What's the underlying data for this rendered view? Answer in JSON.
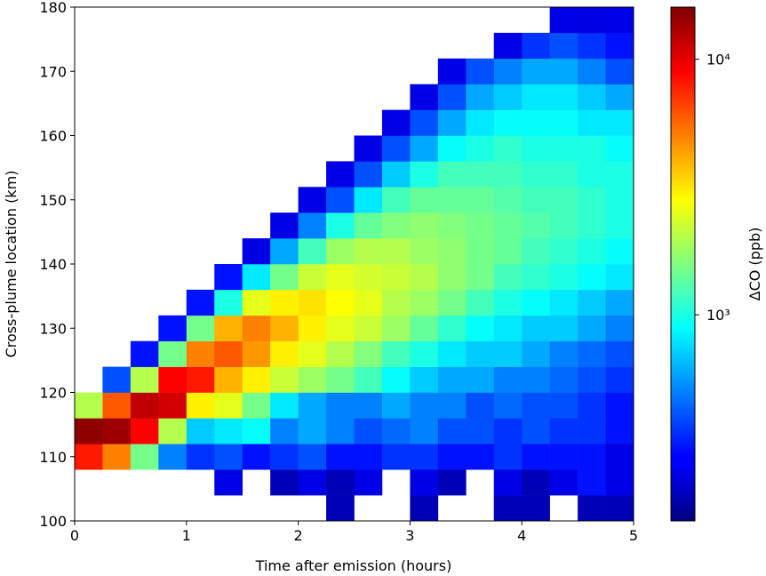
{
  "chart_data": {
    "type": "heatmap",
    "x_label": "Time after emission (hours)",
    "y_label": "Cross-plume location (km)",
    "colorbar_label": "ΔCO (ppb)",
    "colormap": "jet",
    "color_scale": "log",
    "xlim": [
      0,
      5
    ],
    "xticks": [
      0,
      1,
      2,
      3,
      4,
      5
    ],
    "ylim": [
      100,
      180
    ],
    "yticks": [
      100,
      110,
      120,
      130,
      140,
      150,
      160,
      170,
      180
    ],
    "clim": [
      156,
      16000
    ],
    "cticks": [
      {
        "value": 1000,
        "label": "10³"
      },
      {
        "value": 10000,
        "label": "10⁴"
      }
    ],
    "x_bins": [
      0,
      0.25,
      0.5,
      0.75,
      1,
      1.25,
      1.5,
      1.75,
      2,
      2.25,
      2.5,
      2.75,
      3,
      3.25,
      3.5,
      3.75,
      4,
      4.25,
      4.5,
      4.75,
      5
    ],
    "y_bins": [
      100,
      104,
      108,
      112,
      116,
      120,
      124,
      128,
      132,
      136,
      140,
      144,
      148,
      152,
      156,
      160,
      164,
      168,
      172,
      176,
      180
    ],
    "z": [
      [
        null,
        null,
        null,
        null,
        null,
        null,
        null,
        null,
        null,
        200,
        null,
        null,
        200,
        null,
        null,
        200,
        200,
        null,
        200,
        200
      ],
      [
        null,
        null,
        null,
        null,
        null,
        250,
        null,
        200,
        250,
        200,
        250,
        null,
        250,
        200,
        null,
        250,
        200,
        250,
        300,
        250
      ],
      [
        8000,
        5000,
        1500,
        500,
        350,
        400,
        300,
        350,
        400,
        300,
        300,
        350,
        350,
        300,
        300,
        350,
        300,
        300,
        300,
        250
      ],
      [
        15000,
        14000,
        9000,
        2000,
        700,
        800,
        900,
        500,
        600,
        500,
        400,
        450,
        500,
        400,
        400,
        350,
        400,
        350,
        350,
        300
      ],
      [
        2000,
        6000,
        12000,
        11000,
        3000,
        2500,
        1500,
        800,
        600,
        500,
        500,
        600,
        500,
        500,
        400,
        450,
        400,
        400,
        350,
        300
      ],
      [
        null,
        400,
        2000,
        9000,
        8000,
        4000,
        3000,
        2200,
        1800,
        1500,
        1200,
        900,
        700,
        600,
        600,
        500,
        500,
        450,
        400,
        350
      ],
      [
        null,
        null,
        300,
        1500,
        5000,
        6000,
        4500,
        3000,
        2500,
        2000,
        1600,
        1200,
        1000,
        800,
        700,
        700,
        600,
        500,
        450,
        400
      ],
      [
        null,
        null,
        null,
        300,
        1500,
        4000,
        5000,
        4000,
        3000,
        2500,
        2200,
        1800,
        1400,
        1100,
        900,
        800,
        700,
        700,
        600,
        500
      ],
      [
        null,
        null,
        null,
        null,
        300,
        1000,
        2500,
        3000,
        3200,
        2800,
        2500,
        2000,
        1800,
        1500,
        1200,
        1000,
        900,
        800,
        700,
        600
      ],
      [
        null,
        null,
        null,
        null,
        null,
        300,
        800,
        1500,
        2200,
        2500,
        2300,
        2200,
        2000,
        1700,
        1500,
        1200,
        1100,
        1000,
        900,
        800
      ],
      [
        null,
        null,
        null,
        null,
        null,
        null,
        250,
        600,
        1200,
        1800,
        2000,
        2000,
        1800,
        1700,
        1500,
        1400,
        1200,
        1100,
        1000,
        900
      ],
      [
        null,
        null,
        null,
        null,
        null,
        null,
        null,
        250,
        500,
        1000,
        1400,
        1600,
        1700,
        1600,
        1500,
        1400,
        1300,
        1200,
        1100,
        1000
      ],
      [
        null,
        null,
        null,
        null,
        null,
        null,
        null,
        null,
        250,
        400,
        800,
        1200,
        1400,
        1400,
        1400,
        1300,
        1200,
        1200,
        1100,
        1000
      ],
      [
        null,
        null,
        null,
        null,
        null,
        null,
        null,
        null,
        null,
        250,
        400,
        700,
        1000,
        1200,
        1200,
        1200,
        1100,
        1100,
        1000,
        1000
      ],
      [
        null,
        null,
        null,
        null,
        null,
        null,
        null,
        null,
        null,
        null,
        250,
        400,
        600,
        900,
        1000,
        1100,
        1000,
        1000,
        1000,
        900
      ],
      [
        null,
        null,
        null,
        null,
        null,
        null,
        null,
        null,
        null,
        null,
        null,
        250,
        400,
        600,
        800,
        900,
        900,
        900,
        800,
        800
      ],
      [
        null,
        null,
        null,
        null,
        null,
        null,
        null,
        null,
        null,
        null,
        null,
        null,
        250,
        400,
        600,
        700,
        800,
        800,
        700,
        600
      ],
      [
        null,
        null,
        null,
        null,
        null,
        null,
        null,
        null,
        null,
        null,
        null,
        null,
        null,
        250,
        400,
        500,
        600,
        600,
        500,
        400
      ],
      [
        null,
        null,
        null,
        null,
        null,
        null,
        null,
        null,
        null,
        null,
        null,
        null,
        null,
        null,
        null,
        250,
        350,
        400,
        350,
        300
      ],
      [
        null,
        null,
        null,
        null,
        null,
        null,
        null,
        null,
        null,
        null,
        null,
        null,
        null,
        null,
        null,
        null,
        null,
        250,
        250,
        250
      ]
    ]
  }
}
